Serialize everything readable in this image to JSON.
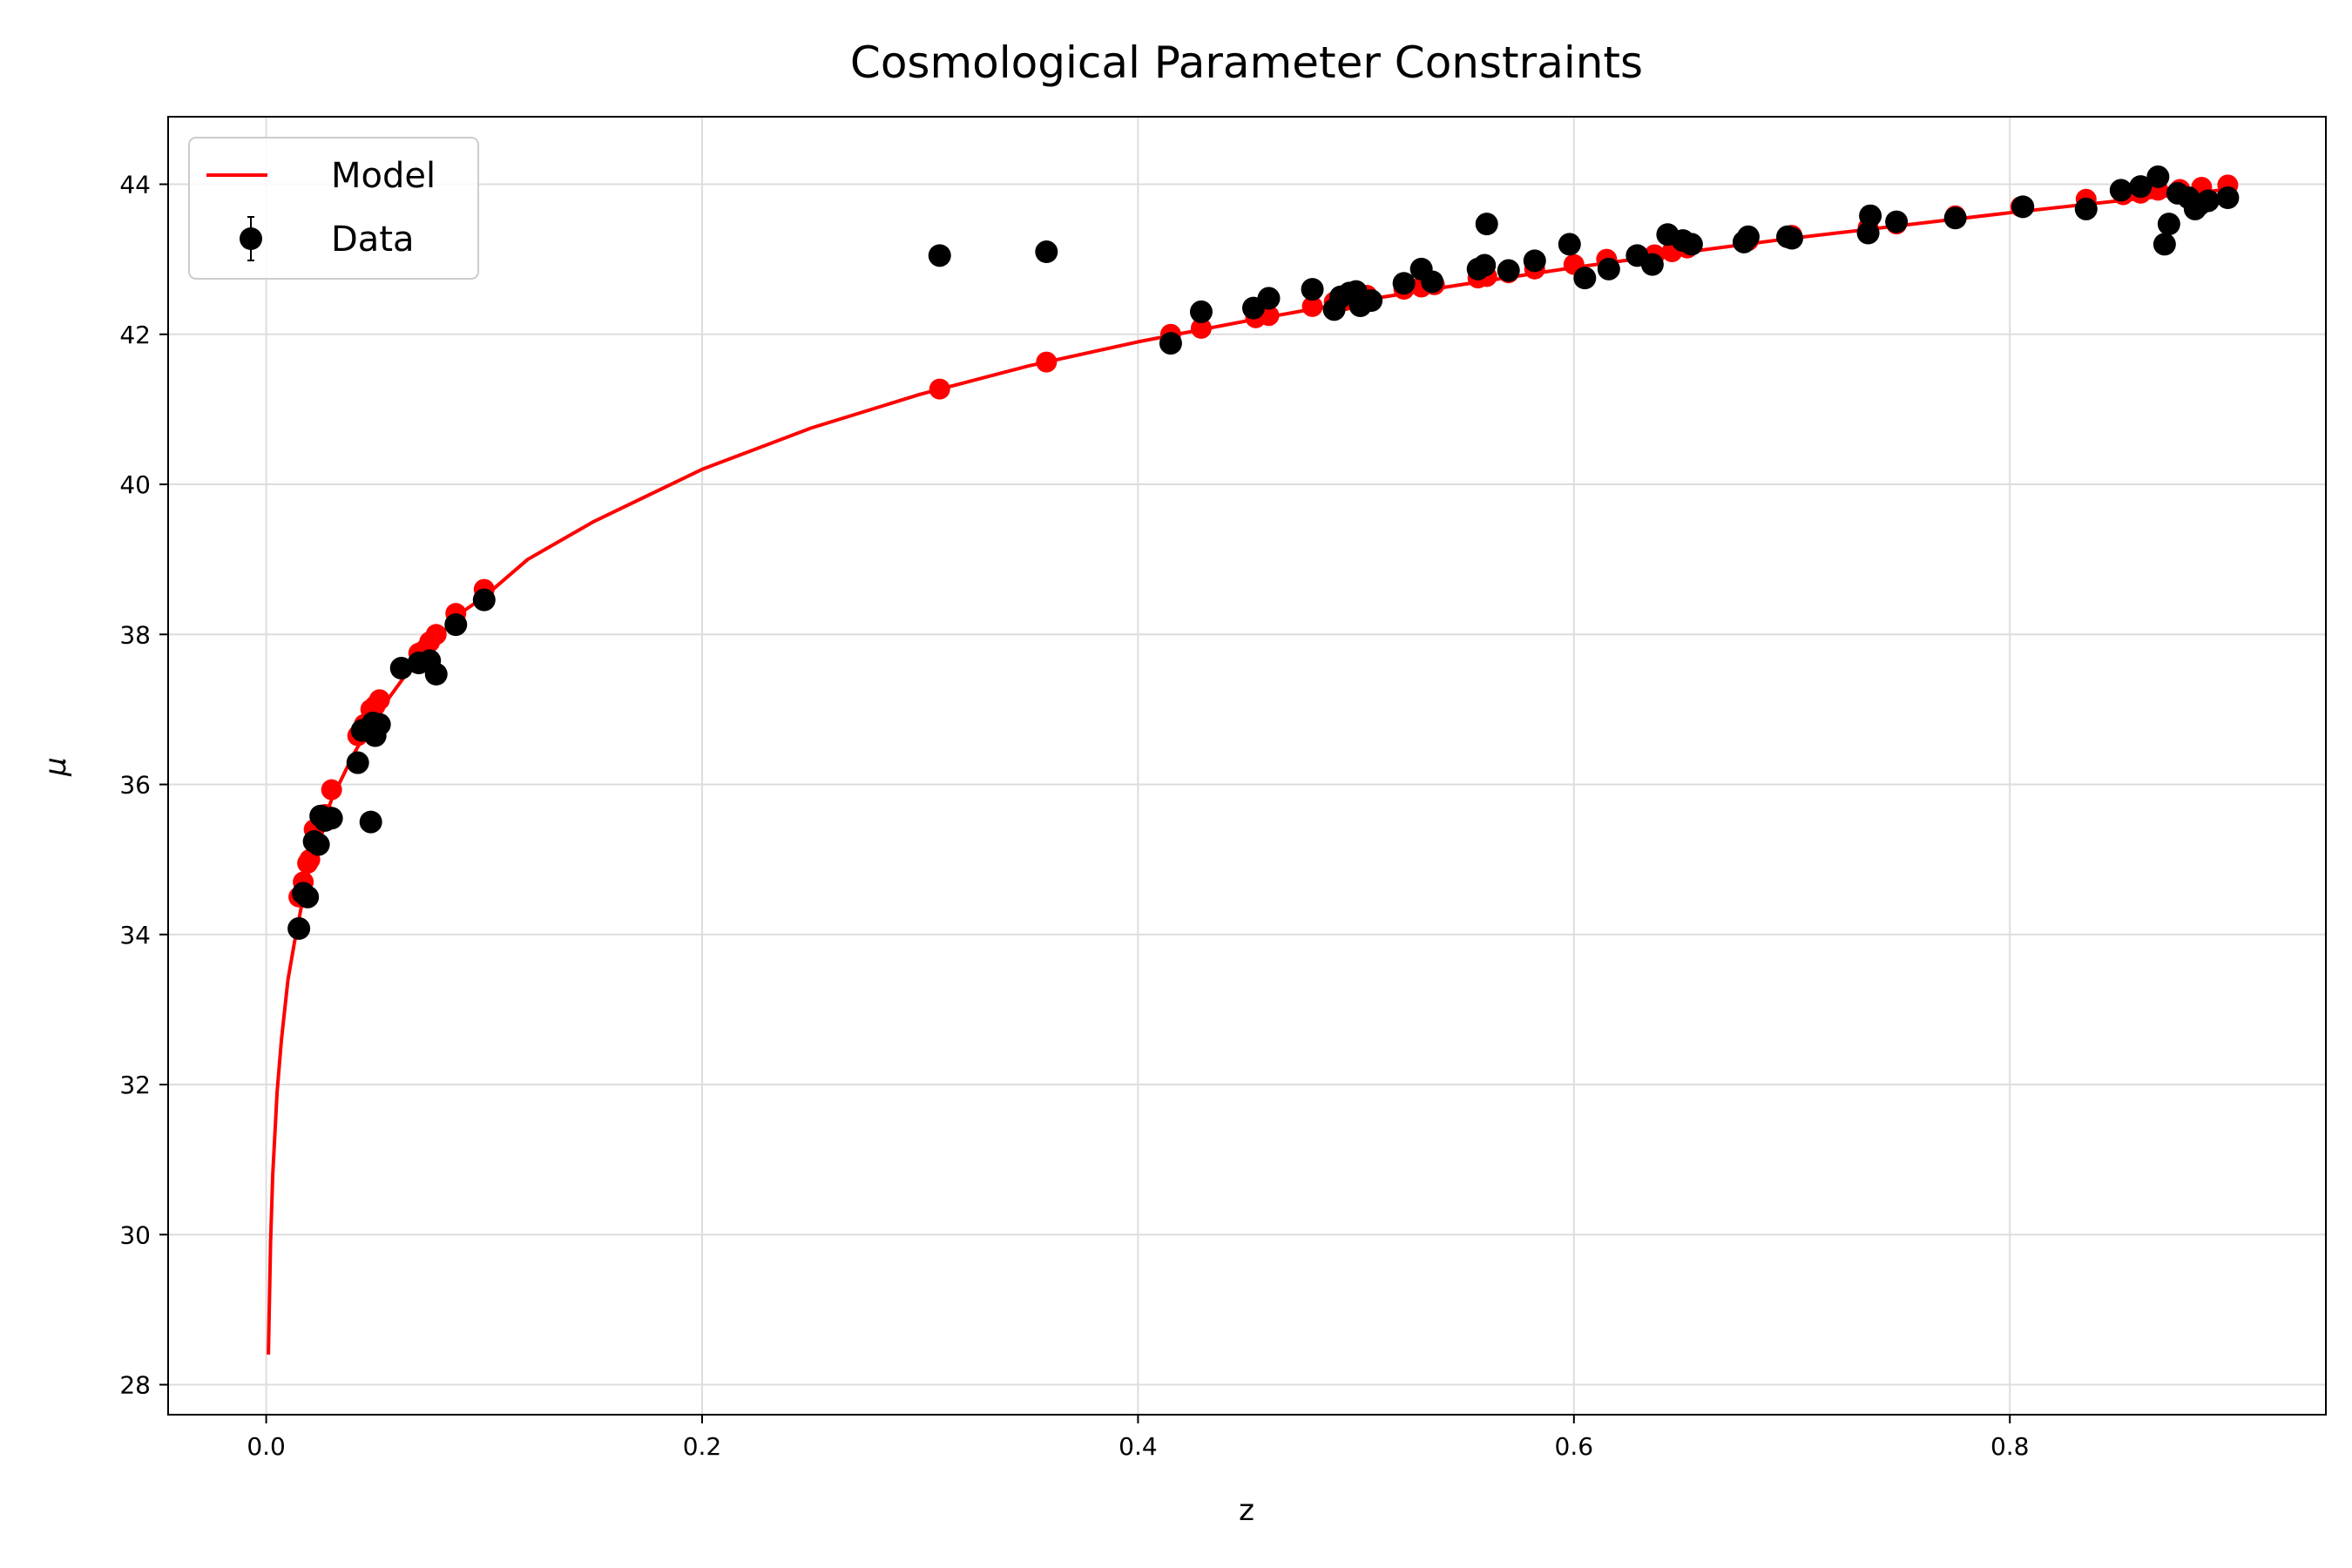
{
  "chart_data": {
    "type": "scatter",
    "title": "Cosmological Parameter Constraints",
    "xlabel": "z",
    "ylabel": "μ",
    "xlim": [
      -0.045,
      0.945
    ],
    "ylim": [
      27.6,
      44.9
    ],
    "grid": true,
    "legend_position": "top-left",
    "x_ticks": [
      0.0,
      0.2,
      0.4,
      0.6,
      0.8
    ],
    "x_tick_labels": [
      "0.0",
      "0.2",
      "0.4",
      "0.6",
      "0.8"
    ],
    "y_ticks": [
      28,
      30,
      32,
      34,
      36,
      38,
      40,
      42,
      44
    ],
    "y_tick_labels": [
      "28",
      "30",
      "32",
      "34",
      "36",
      "38",
      "40",
      "42",
      "44"
    ],
    "model_color": "#ff0000",
    "data_color": "#000000",
    "series": [
      {
        "name": "Model",
        "kind": "line",
        "x": [
          0.001,
          0.002,
          0.003,
          0.005,
          0.007,
          0.01,
          0.013,
          0.017,
          0.02,
          0.025,
          0.03,
          0.035,
          0.04,
          0.05,
          0.06,
          0.07,
          0.08,
          0.09,
          0.1,
          0.12,
          0.15,
          0.2,
          0.25,
          0.3,
          0.35,
          0.4,
          0.45,
          0.5,
          0.55,
          0.6,
          0.65,
          0.7,
          0.75,
          0.8,
          0.85,
          0.9
        ],
        "y": [
          28.4,
          29.9,
          30.8,
          31.9,
          32.6,
          33.4,
          33.9,
          34.5,
          34.9,
          35.4,
          35.8,
          36.1,
          36.4,
          36.9,
          37.3,
          37.7,
          38.0,
          38.3,
          38.5,
          39.0,
          39.5,
          40.2,
          40.75,
          41.2,
          41.58,
          41.9,
          42.18,
          42.44,
          42.67,
          42.89,
          43.09,
          43.28,
          43.45,
          43.62,
          43.78,
          43.93
        ]
      },
      {
        "name": "Model points",
        "kind": "points",
        "x": [
          0.015,
          0.017,
          0.019,
          0.02,
          0.022,
          0.025,
          0.027,
          0.03,
          0.042,
          0.045,
          0.048,
          0.05,
          0.052,
          0.07,
          0.073,
          0.075,
          0.078,
          0.087,
          0.1,
          0.309,
          0.358,
          0.415,
          0.429,
          0.454,
          0.46,
          0.48,
          0.49,
          0.495,
          0.5,
          0.505,
          0.522,
          0.53,
          0.536,
          0.556,
          0.56,
          0.57,
          0.582,
          0.6,
          0.615,
          0.637,
          0.645,
          0.652,
          0.68,
          0.7,
          0.735,
          0.748,
          0.775,
          0.805,
          0.835,
          0.852,
          0.86,
          0.868,
          0.878,
          0.888,
          0.9
        ],
        "y": [
          34.5,
          34.7,
          34.95,
          35.0,
          35.4,
          35.5,
          35.6,
          35.93,
          36.65,
          36.8,
          37.0,
          37.05,
          37.13,
          37.75,
          37.8,
          37.9,
          38.0,
          38.28,
          38.6,
          41.27,
          41.63,
          42.0,
          42.08,
          42.22,
          42.25,
          42.37,
          42.43,
          42.45,
          42.5,
          42.52,
          42.6,
          42.63,
          42.66,
          42.75,
          42.77,
          42.82,
          42.87,
          42.93,
          43.0,
          43.06,
          43.1,
          43.15,
          43.25,
          43.32,
          43.42,
          43.47,
          43.58,
          43.7,
          43.8,
          43.86,
          43.88,
          43.92,
          43.93,
          43.96,
          43.99
        ]
      },
      {
        "name": "Data",
        "kind": "errorbar",
        "x": [
          0.015,
          0.017,
          0.019,
          0.022,
          0.024,
          0.025,
          0.027,
          0.03,
          0.042,
          0.044,
          0.048,
          0.049,
          0.05,
          0.052,
          0.062,
          0.07,
          0.075,
          0.078,
          0.087,
          0.1,
          0.309,
          0.358,
          0.415,
          0.429,
          0.453,
          0.46,
          0.48,
          0.49,
          0.493,
          0.497,
          0.5,
          0.502,
          0.507,
          0.522,
          0.53,
          0.535,
          0.556,
          0.559,
          0.56,
          0.57,
          0.582,
          0.598,
          0.605,
          0.616,
          0.629,
          0.636,
          0.643,
          0.65,
          0.654,
          0.678,
          0.68,
          0.698,
          0.7,
          0.735,
          0.736,
          0.748,
          0.775,
          0.806,
          0.835,
          0.851,
          0.86,
          0.868,
          0.871,
          0.873,
          0.877,
          0.882,
          0.885,
          0.887,
          0.891,
          0.9
        ],
        "y": [
          34.08,
          34.55,
          34.5,
          35.24,
          35.2,
          35.58,
          35.52,
          35.55,
          36.29,
          36.72,
          35.5,
          36.82,
          36.65,
          36.8,
          37.55,
          37.62,
          37.65,
          37.47,
          38.13,
          38.46,
          43.05,
          43.1,
          41.88,
          42.3,
          42.35,
          42.48,
          42.6,
          42.33,
          42.5,
          42.55,
          42.57,
          42.38,
          42.45,
          42.68,
          42.87,
          42.7,
          42.87,
          42.92,
          43.47,
          42.85,
          42.98,
          43.2,
          42.75,
          42.87,
          43.05,
          42.93,
          43.33,
          43.25,
          43.2,
          43.23,
          43.3,
          43.3,
          43.28,
          43.35,
          43.58,
          43.5,
          43.55,
          43.7,
          43.67,
          43.92,
          43.97,
          44.1,
          43.2,
          43.47,
          43.88,
          43.82,
          43.67,
          43.73,
          43.78,
          43.82
        ],
        "yerr": [
          0.02,
          0.02,
          0.02,
          0.02,
          0.02,
          0.02,
          0.02,
          0.02,
          0.02,
          0.02,
          0.02,
          0.02,
          0.02,
          0.02,
          0.02,
          0.02,
          0.02,
          0.02,
          0.02,
          0.02,
          0.02,
          0.02,
          0.02,
          0.02,
          0.02,
          0.02,
          0.02,
          0.02,
          0.02,
          0.02,
          0.02,
          0.02,
          0.02,
          0.02,
          0.02,
          0.02,
          0.02,
          0.02,
          0.02,
          0.02,
          0.02,
          0.02,
          0.02,
          0.02,
          0.02,
          0.02,
          0.02,
          0.02,
          0.02,
          0.02,
          0.02,
          0.02,
          0.02,
          0.02,
          0.02,
          0.02,
          0.02,
          0.02,
          0.02,
          0.02,
          0.02,
          0.02,
          0.02,
          0.02,
          0.02,
          0.02,
          0.02,
          0.02,
          0.02,
          0.02
        ]
      }
    ]
  }
}
